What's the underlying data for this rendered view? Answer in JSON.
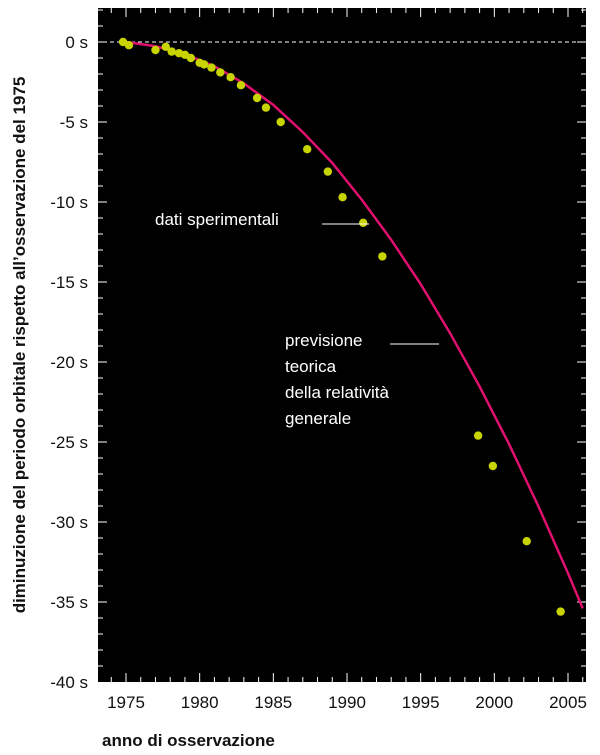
{
  "chart_data": {
    "type": "scatter",
    "title": "",
    "xlabel": "anno di osservazione",
    "ylabel": "diminuzione del periodo orbitale rispetto all’osservazione del 1975",
    "xlim": [
      1972,
      2006.5
    ],
    "ylim": [
      -40,
      2
    ],
    "x_ticks": [
      1975,
      1980,
      1985,
      1990,
      1995,
      2000,
      2005
    ],
    "y_ticks": [
      0,
      -5,
      -10,
      -15,
      -20,
      -25,
      -30,
      -35,
      -40
    ],
    "y_tick_suffix": " s",
    "grid": false,
    "background": "#000000",
    "colors": {
      "points": "#c8d400",
      "curve": "#e0106e",
      "annotation_line": "#ffffff",
      "zero_line": "#ffffff"
    },
    "series": [
      {
        "name": "dati sperimentali",
        "kind": "points",
        "x": [
          1974.8,
          1975.2,
          1977.0,
          1977.7,
          1978.1,
          1978.6,
          1979.0,
          1979.4,
          1980.0,
          1980.3,
          1980.8,
          1981.4,
          1982.1,
          1982.8,
          1983.9,
          1984.5,
          1985.5,
          1987.3,
          1988.7,
          1989.7,
          1991.1,
          1992.4,
          1998.9,
          1999.9,
          2002.2,
          2004.5
        ],
        "y": [
          0.0,
          -0.2,
          -0.5,
          -0.3,
          -0.6,
          -0.7,
          -0.8,
          -1.0,
          -1.3,
          -1.4,
          -1.6,
          -1.9,
          -2.2,
          -2.7,
          -3.5,
          -4.1,
          -5.0,
          -6.7,
          -8.1,
          -9.7,
          -11.3,
          -13.4,
          -24.6,
          -26.5,
          -31.2,
          -35.6
        ]
      },
      {
        "name": "previsione teorica della relatività generale",
        "kind": "curve",
        "x": [
          1975,
          1977,
          1979,
          1981,
          1983,
          1985,
          1987,
          1989,
          1991,
          1993,
          1995,
          1997,
          1999,
          2001,
          2003,
          2005,
          2006
        ],
        "y": [
          0.0,
          -0.26,
          -0.76,
          -1.51,
          -2.59,
          -3.93,
          -5.63,
          -7.56,
          -9.85,
          -12.36,
          -15.14,
          -18.2,
          -21.53,
          -25.14,
          -29.03,
          -33.2,
          -35.4
        ]
      }
    ],
    "annotations": [
      {
        "text": "dati sperimentali",
        "target_x": 1991.0,
        "target_y": -11.3
      },
      {
        "lines": [
          "previsione",
          "teorica",
          "della relatività",
          "generale"
        ],
        "target_x": 1996.0,
        "target_y": -19.0
      }
    ]
  }
}
